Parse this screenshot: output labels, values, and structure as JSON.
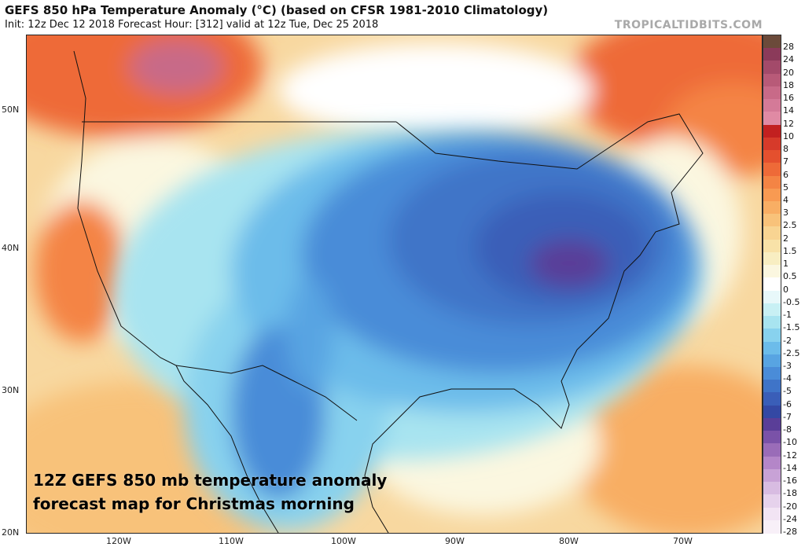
{
  "header": {
    "title": "GEFS 850 hPa Temperature Anomaly (°C) (based on CFSR 1981-2010 Climatology)",
    "subtitle": "Init: 12z Dec 12 2018   Forecast Hour: [312]   valid at 12z Tue, Dec 25 2018",
    "brand": "TROPICALTIDBITS.COM"
  },
  "caption": {
    "line1": "12Z GEFS 850 mb temperature anomaly",
    "line2": "forecast map for Christmas morning"
  },
  "axes": {
    "latitudes": [
      "50N",
      "40N",
      "30N",
      "20N"
    ],
    "longitudes": [
      "120W",
      "110W",
      "100W",
      "90W",
      "80W",
      "70W"
    ]
  },
  "colorbar": {
    "levels": [
      "28",
      "24",
      "20",
      "18",
      "16",
      "14",
      "12",
      "10",
      "8",
      "7",
      "6",
      "5",
      "4",
      "3",
      "2.5",
      "2",
      "1.5",
      "1",
      "0.5",
      "0",
      "-0.5",
      "-1",
      "-1.5",
      "-2",
      "-2.5",
      "-3",
      "-4",
      "-5",
      "-6",
      "-7",
      "-8",
      "-10",
      "-12",
      "-14",
      "-16",
      "-18",
      "-20",
      "-24",
      "-28"
    ],
    "colors": [
      "#6b4a3a",
      "#8b3a5a",
      "#a34a6a",
      "#b85a78",
      "#c86a88",
      "#d47a98",
      "#e08aa4",
      "#c22020",
      "#d63a2a",
      "#e4502e",
      "#ee6a38",
      "#f48444",
      "#f89a52",
      "#f8ae64",
      "#f8c27a",
      "#f8d492",
      "#f8e2a8",
      "#f8eec2",
      "#fbf7e0",
      "#ffffff",
      "#e8f8fa",
      "#c8f0f4",
      "#a8e4f0",
      "#88d2ee",
      "#6cbcea",
      "#58a4e2",
      "#4a8cd8",
      "#3f74c8",
      "#3a5eb8",
      "#3448a4",
      "#5a3e98",
      "#7a52a8",
      "#9a6cb8",
      "#b486c8",
      "#c8a2d6",
      "#d8bce2",
      "#e6d2ec",
      "#f2e4f4",
      "#f8f0f8"
    ]
  }
}
